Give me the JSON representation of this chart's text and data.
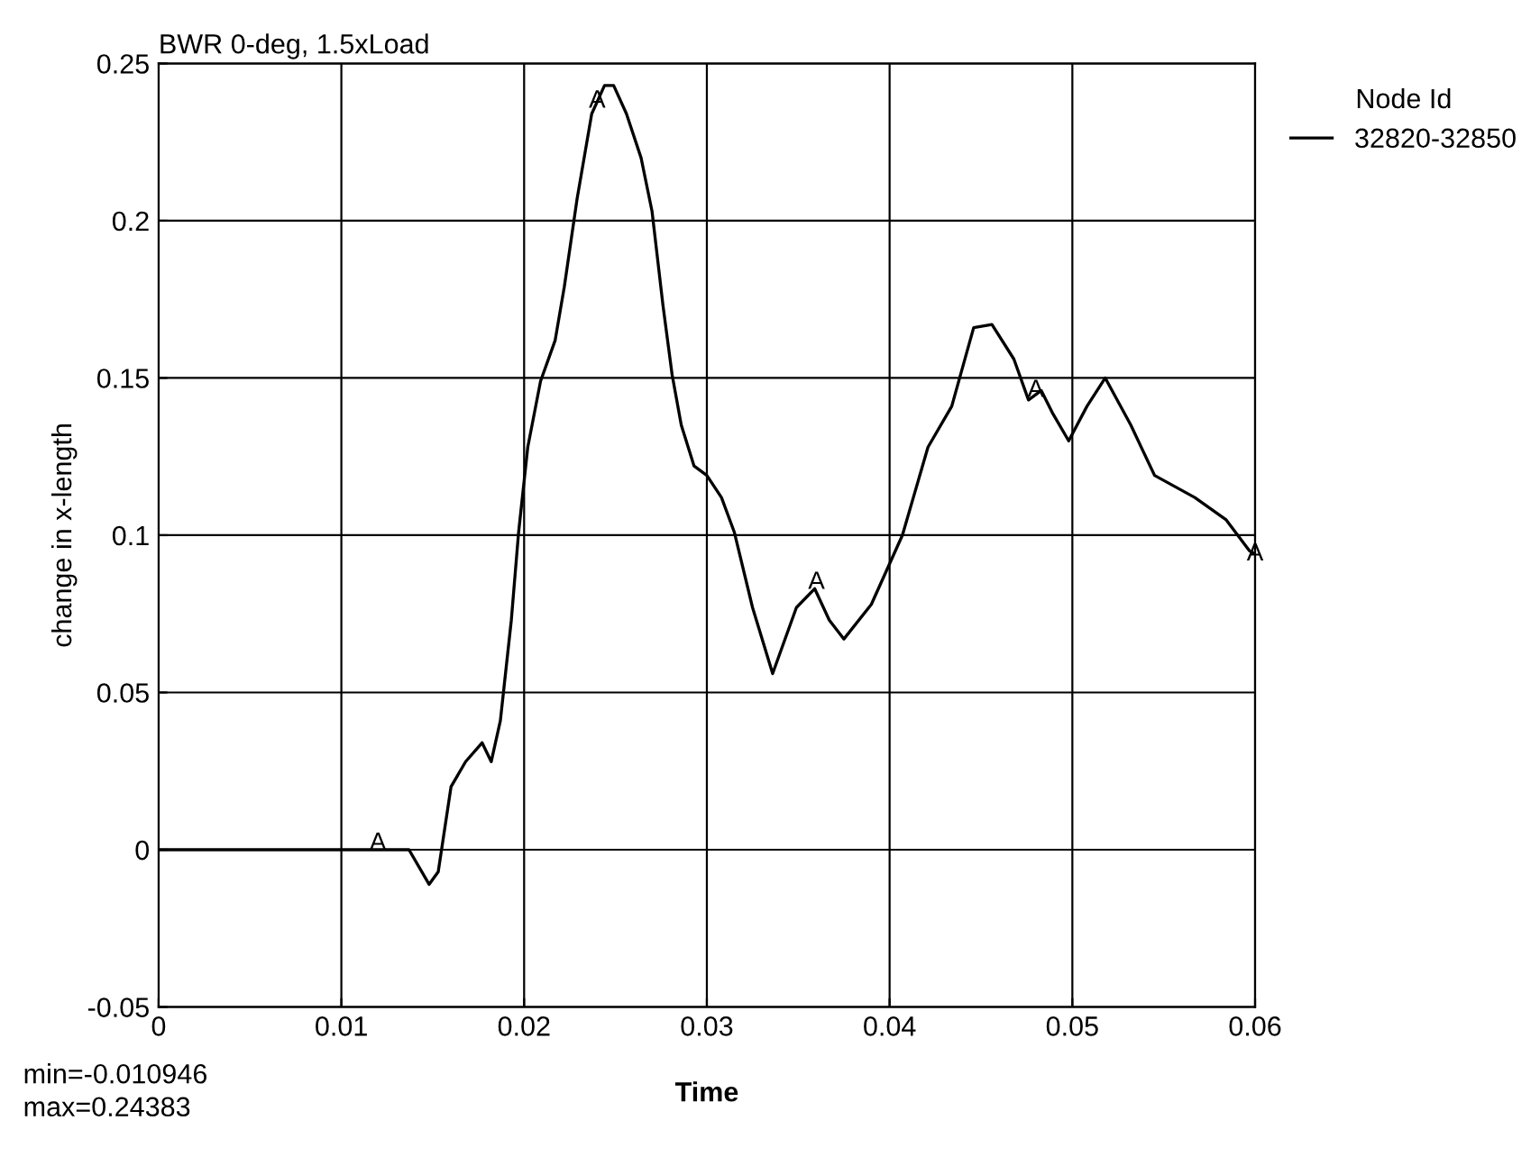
{
  "chart_data": {
    "type": "line",
    "title": "BWR 0-deg, 1.5xLoad",
    "xlabel": "Time",
    "ylabel": "change in x-length",
    "legend_title": "Node Id",
    "series": [
      {
        "name": "32820-32850",
        "color": "#000000",
        "x": [
          0,
          0.0137,
          0.0148,
          0.0153,
          0.016,
          0.0168,
          0.0177,
          0.0182,
          0.0187,
          0.0193,
          0.0197,
          0.0202,
          0.0209,
          0.0217,
          0.0222,
          0.0229,
          0.0237,
          0.0244,
          0.0249,
          0.0256,
          0.0264,
          0.027,
          0.0276,
          0.0281,
          0.0286,
          0.0293,
          0.03,
          0.0308,
          0.0315,
          0.0325,
          0.0336,
          0.0349,
          0.0359,
          0.0367,
          0.0375,
          0.039,
          0.0407,
          0.0421,
          0.0434,
          0.0446,
          0.0456,
          0.0468,
          0.0476,
          0.0483,
          0.0489,
          0.0498,
          0.0508,
          0.0518,
          0.0532,
          0.0545,
          0.0567,
          0.0584,
          0.0597,
          0.06
        ],
        "values": [
          0,
          0,
          -0.011,
          -0.007,
          0.02,
          0.028,
          0.034,
          0.028,
          0.041,
          0.073,
          0.101,
          0.128,
          0.149,
          0.162,
          0.179,
          0.207,
          0.234,
          0.243,
          0.243,
          0.234,
          0.22,
          0.203,
          0.173,
          0.151,
          0.135,
          0.122,
          0.119,
          0.112,
          0.101,
          0.077,
          0.056,
          0.077,
          0.083,
          0.073,
          0.067,
          0.078,
          0.1,
          0.128,
          0.141,
          0.166,
          0.167,
          0.156,
          0.143,
          0.146,
          0.139,
          0.13,
          0.141,
          0.15,
          0.135,
          0.119,
          0.112,
          0.105,
          0.095,
          0.094
        ]
      }
    ],
    "xlim": [
      0,
      0.06
    ],
    "xticks": [
      0,
      0.01,
      0.02,
      0.03,
      0.04,
      0.05,
      0.06
    ],
    "ylim": [
      -0.05,
      0.25
    ],
    "yticks": [
      -0.05,
      0,
      0.05,
      0.1,
      0.15,
      0.2,
      0.25
    ],
    "grid": true,
    "legend": "top right",
    "marker": "none",
    "line_style": "solid",
    "annotations": [
      {
        "text": "A",
        "x": 0.012,
        "y": 0.002
      },
      {
        "text": "A",
        "x": 0.024,
        "y": 0.238
      },
      {
        "text": "A",
        "x": 0.036,
        "y": 0.085
      },
      {
        "text": "A",
        "x": 0.048,
        "y": 0.146
      },
      {
        "text": "A",
        "x": 0.06,
        "y": 0.094
      },
      "min=-0.010946",
      "max=0.24383"
    ]
  }
}
